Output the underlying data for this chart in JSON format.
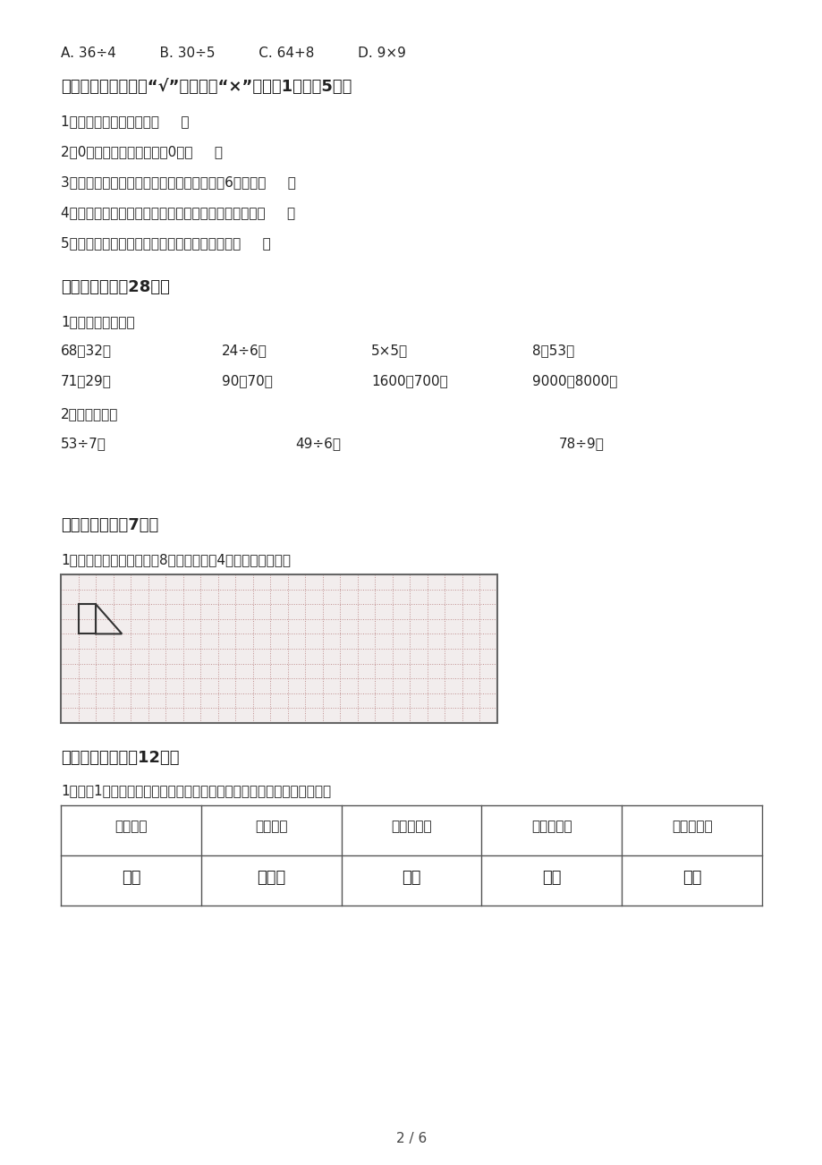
{
  "bg_color": "#ffffff",
  "text_color": "#222222",
  "line1": "A. 36÷4          B. 30÷5          C. 64+8          D. 9×9",
  "section3_title": "三、判断题（对的打“√”，错的打“×”。每题1分，共5分）",
  "section3_items": [
    "1、线段可以测量长度。（     ）",
    "2、0乘或除以任何数，都冗0。（     ）",
    "3、有三个同学，每两人握一次手，一共要握6次手。（     ）",
    "4、在乘法算式里，积一定比其中任何一个乘数都大。（     ）",
    "5、傍晚，面对夕阳，我们面朝的方向是西面。（     ）"
  ],
  "section4_title": "四、计算题。（28分）",
  "sub1_label": "1、直接写出得数。",
  "calc_row1": [
    "68－32＝",
    "24÷6＝",
    "5×5＝",
    "8＋53＝"
  ],
  "calc_row2": [
    "71＋29＝",
    "90＋70＝",
    "1600－700＝",
    "9000－8000＝"
  ],
  "sub2_label": "2、竖式计算。",
  "vert_row": [
    "53÷7＝",
    "49÷6＝",
    "78÷9＝"
  ],
  "section5_title": "五、作图题。（7分）",
  "graph_desc": "1、请画出下面图形向右平8格，再向下平4格后得到的图形。",
  "section6_title": "六、统计图表。（12分）",
  "stat_desc": "1、二（1）班同学调查了本班同学参加社团的情况，下面是他们的记录：",
  "table_headers": [
    "象棋社团",
    "跳绳社团",
    "乒乓球社团",
    "儿童画社团",
    "踢健子社团"
  ],
  "table_row2": [
    "正丁",
    "正正一",
    "正下",
    "正正",
    "正卢"
  ],
  "page_num": "2 / 6"
}
